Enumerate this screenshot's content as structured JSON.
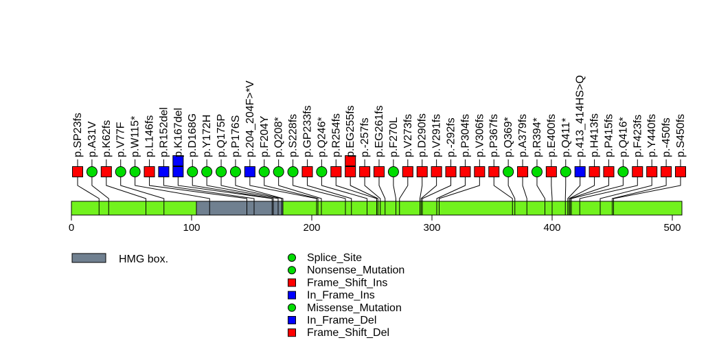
{
  "figure": {
    "background": "#FFFFFF",
    "title": ""
  },
  "palette": {
    "green": "#00DC00",
    "red": "#FF0000",
    "blue": "#0000FF",
    "backbone": "#72F21E",
    "domain": "#708090",
    "outline": "#000000"
  },
  "chart_data": {
    "type": "lollipop",
    "title": "",
    "xlabel": "",
    "xaxis": {
      "min": 0,
      "max": 509,
      "ticks": [
        0,
        100,
        200,
        300,
        400,
        500
      ]
    },
    "protein": {
      "length": 509,
      "domains": [
        {
          "name": "HMG box.",
          "start": 104,
          "end": 176
        }
      ]
    },
    "mutations": [
      {
        "label": "p.SP23fs",
        "position": 23,
        "shape": "square",
        "color": "red",
        "count": 1
      },
      {
        "label": "p.A31V",
        "position": 31,
        "shape": "circle",
        "color": "green",
        "count": 1
      },
      {
        "label": "p.K62fs",
        "position": 62,
        "shape": "square",
        "color": "red",
        "count": 1
      },
      {
        "label": "p.V77F",
        "position": 77,
        "shape": "circle",
        "color": "green",
        "count": 1
      },
      {
        "label": "p.W115*",
        "position": 115,
        "shape": "circle",
        "color": "green",
        "count": 1
      },
      {
        "label": "p.L146fs",
        "position": 146,
        "shape": "square",
        "color": "red",
        "count": 1
      },
      {
        "label": "p.R152del",
        "position": 152,
        "shape": "square",
        "color": "blue",
        "count": 1
      },
      {
        "label": "p.K167del",
        "position": 167,
        "shape": "square",
        "color": "blue",
        "count": 2
      },
      {
        "label": "p.D168G",
        "position": 168,
        "shape": "circle",
        "color": "green",
        "count": 1
      },
      {
        "label": "p.Y172H",
        "position": 172,
        "shape": "circle",
        "color": "green",
        "count": 1
      },
      {
        "label": "p.Q175P",
        "position": 175,
        "shape": "circle",
        "color": "green",
        "count": 1
      },
      {
        "label": "p.P176S",
        "position": 176,
        "shape": "circle",
        "color": "green",
        "count": 1
      },
      {
        "label": "p.204_204F>*V",
        "position": 204,
        "shape": "square",
        "color": "blue",
        "count": 1
      },
      {
        "label": "p.F204Y",
        "position": 204,
        "shape": "circle",
        "color": "green",
        "count": 1
      },
      {
        "label": "p.Q208*",
        "position": 208,
        "shape": "circle",
        "color": "green",
        "count": 1
      },
      {
        "label": "p.S228fs",
        "position": 228,
        "shape": "circle",
        "color": "green",
        "count": 1
      },
      {
        "label": "p.GP233fs",
        "position": 233,
        "shape": "square",
        "color": "red",
        "count": 1
      },
      {
        "label": "p.Q246*",
        "position": 246,
        "shape": "circle",
        "color": "green",
        "count": 1
      },
      {
        "label": "p.R254fs",
        "position": 254,
        "shape": "square",
        "color": "red",
        "count": 1
      },
      {
        "label": "p.EG255fs",
        "position": 255,
        "shape": "square",
        "color": "red",
        "count": 2
      },
      {
        "label": "p.-257fs",
        "position": 257,
        "shape": "square",
        "color": "red",
        "count": 1
      },
      {
        "label": "p.EG261fs",
        "position": 261,
        "shape": "square",
        "color": "red",
        "count": 1
      },
      {
        "label": "p.F270L",
        "position": 270,
        "shape": "circle",
        "color": "green",
        "count": 1
      },
      {
        "label": "p.V273fs",
        "position": 273,
        "shape": "square",
        "color": "red",
        "count": 1
      },
      {
        "label": "p.D290fs",
        "position": 290,
        "shape": "square",
        "color": "red",
        "count": 1
      },
      {
        "label": "p.V291fs",
        "position": 291,
        "shape": "square",
        "color": "red",
        "count": 1
      },
      {
        "label": "p.-292fs",
        "position": 292,
        "shape": "square",
        "color": "red",
        "count": 1
      },
      {
        "label": "p.P304fs",
        "position": 304,
        "shape": "square",
        "color": "red",
        "count": 1
      },
      {
        "label": "p.V306fs",
        "position": 306,
        "shape": "square",
        "color": "red",
        "count": 1
      },
      {
        "label": "p.P367fs",
        "position": 367,
        "shape": "square",
        "color": "red",
        "count": 1
      },
      {
        "label": "p.Q369*",
        "position": 369,
        "shape": "circle",
        "color": "green",
        "count": 1
      },
      {
        "label": "p.A379fs",
        "position": 379,
        "shape": "square",
        "color": "red",
        "count": 1
      },
      {
        "label": "p.R394*",
        "position": 394,
        "shape": "circle",
        "color": "green",
        "count": 1
      },
      {
        "label": "p.E400fs",
        "position": 400,
        "shape": "square",
        "color": "red",
        "count": 1
      },
      {
        "label": "p.Q411*",
        "position": 411,
        "shape": "circle",
        "color": "green",
        "count": 1
      },
      {
        "label": "p.413_414HS>Q",
        "position": 413,
        "shape": "square",
        "color": "blue",
        "count": 1
      },
      {
        "label": "p.H413fs",
        "position": 413,
        "shape": "square",
        "color": "red",
        "count": 1
      },
      {
        "label": "p.P415fs",
        "position": 415,
        "shape": "square",
        "color": "red",
        "count": 1
      },
      {
        "label": "p.Q416*",
        "position": 416,
        "shape": "circle",
        "color": "green",
        "count": 1
      },
      {
        "label": "p.F423fs",
        "position": 423,
        "shape": "square",
        "color": "red",
        "count": 1
      },
      {
        "label": "p.Y440fs",
        "position": 440,
        "shape": "square",
        "color": "red",
        "count": 1
      },
      {
        "label": "p.-450fs",
        "position": 450,
        "shape": "square",
        "color": "red",
        "count": 1
      },
      {
        "label": "p.S450fs",
        "position": 450,
        "shape": "square",
        "color": "red",
        "count": 1
      }
    ],
    "domain_legend": {
      "label": "HMG box."
    },
    "legend": [
      {
        "label": "Splice_Site",
        "shape": "circle",
        "color": "green"
      },
      {
        "label": "Nonsense_Mutation",
        "shape": "circle",
        "color": "green"
      },
      {
        "label": "Frame_Shift_Ins",
        "shape": "square",
        "color": "red"
      },
      {
        "label": "In_Frame_Ins",
        "shape": "square",
        "color": "blue"
      },
      {
        "label": "Missense_Mutation",
        "shape": "circle",
        "color": "green"
      },
      {
        "label": "In_Frame_Del",
        "shape": "square",
        "color": "blue"
      },
      {
        "label": "Frame_Shift_Del",
        "shape": "square",
        "color": "red"
      }
    ],
    "legend_position": "bottom-center",
    "grid": false
  }
}
